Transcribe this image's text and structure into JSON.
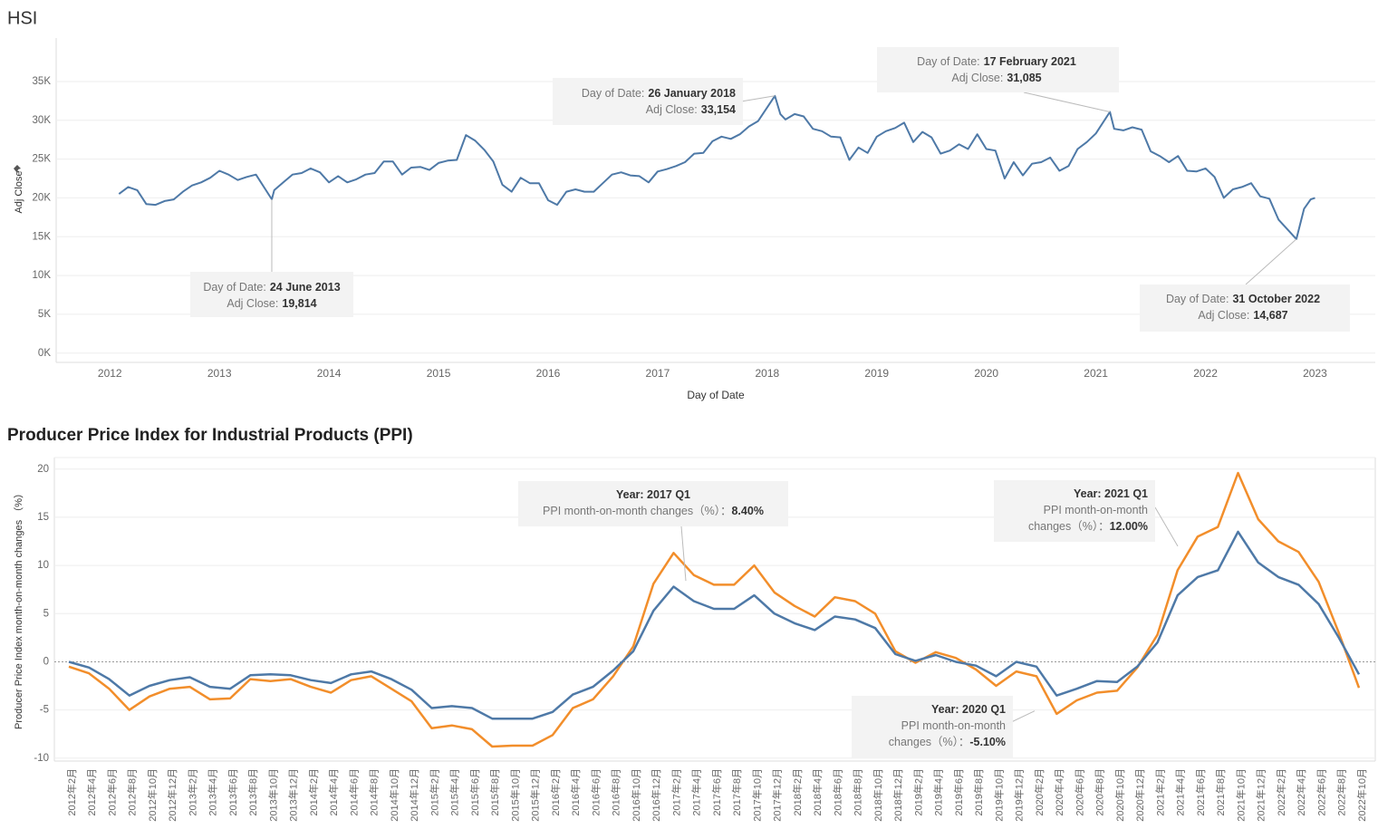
{
  "chart_data": [
    {
      "type": "line",
      "title": "HSI",
      "x_label": "Day of Date",
      "y_label": "Adj Close",
      "x": [
        2012.083,
        2012.167,
        2012.25,
        2012.333,
        2012.417,
        2012.5,
        2012.583,
        2012.667,
        2012.75,
        2012.833,
        2012.917,
        2013.0,
        2013.083,
        2013.167,
        2013.25,
        2013.333,
        2013.478,
        2013.5,
        2013.583,
        2013.667,
        2013.75,
        2013.833,
        2013.917,
        2014.0,
        2014.083,
        2014.167,
        2014.25,
        2014.333,
        2014.417,
        2014.5,
        2014.583,
        2014.667,
        2014.75,
        2014.833,
        2014.917,
        2015.0,
        2015.083,
        2015.167,
        2015.25,
        2015.333,
        2015.417,
        2015.5,
        2015.583,
        2015.667,
        2015.75,
        2015.833,
        2015.917,
        2016.0,
        2016.083,
        2016.167,
        2016.25,
        2016.333,
        2016.417,
        2016.5,
        2016.583,
        2016.667,
        2016.75,
        2016.833,
        2016.917,
        2017.0,
        2017.083,
        2017.167,
        2017.25,
        2017.333,
        2017.417,
        2017.5,
        2017.583,
        2017.667,
        2017.75,
        2017.833,
        2017.917,
        2018.07,
        2018.12,
        2018.167,
        2018.25,
        2018.333,
        2018.417,
        2018.5,
        2018.583,
        2018.667,
        2018.75,
        2018.833,
        2018.917,
        2019.0,
        2019.083,
        2019.167,
        2019.25,
        2019.333,
        2019.417,
        2019.5,
        2019.583,
        2019.667,
        2019.75,
        2019.833,
        2019.917,
        2020.0,
        2020.083,
        2020.167,
        2020.25,
        2020.333,
        2020.417,
        2020.5,
        2020.583,
        2020.667,
        2020.75,
        2020.833,
        2020.917,
        2021.0,
        2021.128,
        2021.167,
        2021.25,
        2021.333,
        2021.417,
        2021.5,
        2021.583,
        2021.667,
        2021.75,
        2021.833,
        2021.917,
        2022.0,
        2022.083,
        2022.167,
        2022.25,
        2022.333,
        2022.417,
        2022.5,
        2022.583,
        2022.667,
        2022.83,
        2022.9,
        2022.96,
        2023.0
      ],
      "series": [
        {
          "color": "#4e79a7",
          "values": [
            20500,
            21400,
            21000,
            19200,
            19100,
            19600,
            19800,
            20800,
            21600,
            22000,
            22600,
            23500,
            23000,
            22300,
            22700,
            23000,
            19814,
            21000,
            22000,
            23000,
            23200,
            23800,
            23300,
            22000,
            22800,
            22000,
            22400,
            23000,
            23200,
            24700,
            24700,
            23000,
            23900,
            24000,
            23600,
            24500,
            24800,
            24900,
            28100,
            27400,
            26200,
            24700,
            21700,
            20800,
            22600,
            21900,
            21900,
            19700,
            19100,
            20800,
            21100,
            20800,
            20800,
            21900,
            23000,
            23300,
            22900,
            22800,
            22000,
            23400,
            23700,
            24100,
            24600,
            25700,
            25800,
            27300,
            27900,
            27600,
            28200,
            29200,
            29900,
            33154,
            30800,
            30100,
            30800,
            30500,
            28900,
            28600,
            27900,
            27800,
            24900,
            26500,
            25800,
            27900,
            28600,
            29000,
            29700,
            27200,
            28500,
            27800,
            25700,
            26100,
            26900,
            26300,
            28200,
            26300,
            26100,
            22500,
            24600,
            22900,
            24400,
            24600,
            25200,
            23500,
            24100,
            26300,
            27200,
            28300,
            31085,
            28900,
            28700,
            29100,
            28800,
            26000,
            25400,
            24600,
            25400,
            23500,
            23400,
            23800,
            22700,
            20000,
            21100,
            21400,
            21900,
            20200,
            19900,
            17200,
            14687,
            18600,
            19800,
            20000
          ]
        }
      ],
      "xlim": [
        2011.51,
        2023.55
      ],
      "xticks": [
        2012,
        2013,
        2014,
        2015,
        2016,
        2017,
        2018,
        2019,
        2020,
        2021,
        2022,
        2023
      ],
      "ylim": [
        -1200,
        40600
      ],
      "yticks": [
        {
          "value": 0,
          "label": "0K"
        },
        {
          "value": 5000,
          "label": "5K"
        },
        {
          "value": 10000,
          "label": "10K"
        },
        {
          "value": 15000,
          "label": "15K"
        },
        {
          "value": 20000,
          "label": "20K"
        },
        {
          "value": 25000,
          "label": "25K"
        },
        {
          "value": 30000,
          "label": "30K"
        },
        {
          "value": 35000,
          "label": "35K"
        }
      ],
      "grid": true,
      "annotations": [
        {
          "date_label": "Day of Date:",
          "date": "24 June 2013",
          "x": 2013.478,
          "value_name": "Adj Close:",
          "value": 19814,
          "value_label": "19,814"
        },
        {
          "date_label": "Day of Date:",
          "date": "26 January 2018",
          "x": 2018.07,
          "value_name": "Adj Close:",
          "value": 33154,
          "value_label": "33,154"
        },
        {
          "date_label": "Day of Date:",
          "date": "17 February 2021",
          "x": 2021.128,
          "value_name": "Adj Close:",
          "value": 31085,
          "value_label": "31,085"
        },
        {
          "date_label": "Day of Date:",
          "date": "31 October 2022",
          "x": 2022.83,
          "value_name": "Adj Close:",
          "value": 14687,
          "value_label": "14,687"
        }
      ]
    },
    {
      "type": "line",
      "title": "Producer Price Index for Industrial Products (PPI)",
      "y_label": "Producer Price Index month-on-month changes （%）",
      "categories": [
        "2012年2月",
        "2012年4月",
        "2012年6月",
        "2012年8月",
        "2012年10月",
        "2012年12月",
        "2013年2月",
        "2013年4月",
        "2013年6月",
        "2013年8月",
        "2013年10月",
        "2013年12月",
        "2014年2月",
        "2014年4月",
        "2014年6月",
        "2014年8月",
        "2014年10月",
        "2014年12月",
        "2015年2月",
        "2015年4月",
        "2015年6月",
        "2015年8月",
        "2015年10月",
        "2015年12月",
        "2016年2月",
        "2016年4月",
        "2016年6月",
        "2016年8月",
        "2016年10月",
        "2016年12月",
        "2017年2月",
        "2017年4月",
        "2017年6月",
        "2017年8月",
        "2017年10月",
        "2017年12月",
        "2018年2月",
        "2018年4月",
        "2018年6月",
        "2018年8月",
        "2018年10月",
        "2018年12月",
        "2019年2月",
        "2019年4月",
        "2019年6月",
        "2019年8月",
        "2019年10月",
        "2019年12月",
        "2020年2月",
        "2020年4月",
        "2020年6月",
        "2020年8月",
        "2020年10月",
        "2020年12月",
        "2021年2月",
        "2021年4月",
        "2021年6月",
        "2021年8月",
        "2021年10月",
        "2021年12月",
        "2022年2月",
        "2022年4月",
        "2022年6月",
        "2022年8月",
        "2022年10月"
      ],
      "series": [
        {
          "color": "#f28e2b",
          "values": [
            -0.5,
            -1.2,
            -2.8,
            -5.0,
            -3.6,
            -2.8,
            -2.6,
            -3.9,
            -3.8,
            -1.8,
            -2.0,
            -1.8,
            -2.6,
            -3.2,
            -1.9,
            -1.5,
            -2.8,
            -4.1,
            -6.9,
            -6.6,
            -7.0,
            -8.8,
            -8.7,
            -8.7,
            -7.6,
            -4.8,
            -3.9,
            -1.5,
            1.6,
            8.1,
            11.3,
            9.0,
            8.0,
            8.0,
            10.0,
            7.2,
            5.8,
            4.7,
            6.7,
            6.3,
            5.0,
            1.1,
            -0.1,
            1.0,
            0.4,
            -0.8,
            -2.5,
            -1.0,
            -1.5,
            -5.4,
            -4.0,
            -3.2,
            -3.0,
            -0.6,
            2.8,
            9.5,
            13.0,
            14.0,
            19.6,
            14.8,
            12.5,
            11.4,
            8.3,
            3.0,
            -2.7
          ]
        },
        {
          "color": "#4e79a7",
          "values": [
            0.0,
            -0.6,
            -1.8,
            -3.5,
            -2.5,
            -1.9,
            -1.6,
            -2.6,
            -2.8,
            -1.4,
            -1.3,
            -1.4,
            -1.9,
            -2.2,
            -1.3,
            -1.0,
            -1.8,
            -2.9,
            -4.8,
            -4.6,
            -4.8,
            -5.9,
            -5.9,
            -5.9,
            -5.2,
            -3.4,
            -2.6,
            -0.9,
            1.1,
            5.3,
            7.8,
            6.3,
            5.5,
            5.5,
            6.9,
            5.0,
            4.0,
            3.3,
            4.7,
            4.4,
            3.5,
            0.8,
            0.1,
            0.7,
            0.0,
            -0.4,
            -1.5,
            0.0,
            -0.5,
            -3.5,
            -2.8,
            -2.0,
            -2.1,
            -0.5,
            2.0,
            6.9,
            8.8,
            9.5,
            13.5,
            10.3,
            8.8,
            8.0,
            6.0,
            2.5,
            -1.3
          ]
        }
      ],
      "ylim": [
        -10.3,
        21.2
      ],
      "yticks": [
        -10,
        -5,
        0,
        5,
        10,
        15,
        20
      ],
      "grid": true,
      "annotations": [
        {
          "title": "Year: 2017 Q1",
          "value_name": "PPI month-on-month changes（%）：",
          "value": 8.4,
          "value_label": "8.40%"
        },
        {
          "title": "Year: 2021 Q1",
          "value_name": "PPI month-on-month changes（%）：",
          "value": 12.0,
          "value_label": "12.00%"
        },
        {
          "title": "Year: 2020 Q1",
          "value_name": "PPI month-on-month changes（%）：",
          "value": -5.1,
          "value_label": "-5.10%"
        }
      ]
    }
  ]
}
